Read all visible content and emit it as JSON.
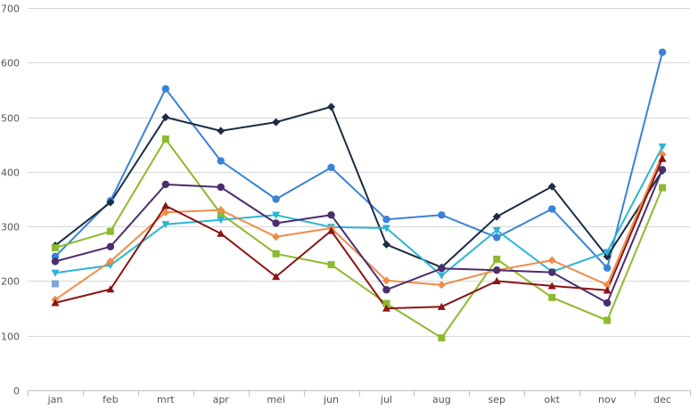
{
  "chart_data": {
    "type": "line",
    "title": "",
    "xlabel": "",
    "ylabel": "",
    "categories": [
      "jan",
      "feb",
      "mrt",
      "apr",
      "mei",
      "jun",
      "jul",
      "aug",
      "sep",
      "okt",
      "nov",
      "dec"
    ],
    "ylim": [
      0,
      700
    ],
    "yticks": [
      0,
      100,
      200,
      300,
      400,
      500,
      600,
      700
    ],
    "grid": true,
    "legend": "none",
    "series": [
      {
        "color": "#3a82d6",
        "marker": "circle",
        "values": [
          245,
          347,
          552,
          420,
          350,
          408,
          313,
          321,
          280,
          332,
          224,
          619
        ]
      },
      {
        "color": "#1b2d42",
        "marker": "diamond",
        "values": [
          265,
          344,
          500,
          475,
          491,
          519,
          267,
          225,
          318,
          373,
          245,
          402
        ]
      },
      {
        "color": "#8dba2e",
        "marker": "square",
        "values": [
          261,
          291,
          460,
          323,
          250,
          230,
          159,
          96,
          240,
          170,
          128,
          371
        ]
      },
      {
        "color": "#2cb4d4",
        "marker": "triangle-down",
        "values": [
          215,
          229,
          304,
          312,
          321,
          299,
          297,
          210,
          293,
          217,
          253,
          446
        ]
      },
      {
        "color": "#ef8c4a",
        "marker": "diamond",
        "values": [
          166,
          236,
          326,
          330,
          281,
          297,
          201,
          193,
          220,
          238,
          193,
          432
        ]
      },
      {
        "color": "#4a2e6e",
        "marker": "circle",
        "values": [
          236,
          263,
          377,
          372,
          306,
          321,
          184,
          223,
          220,
          216,
          160,
          404
        ]
      },
      {
        "color": "#8b1414",
        "marker": "triangle-up",
        "values": [
          160,
          185,
          338,
          287,
          208,
          292,
          150,
          153,
          200,
          191,
          183,
          424
        ]
      }
    ],
    "extra_points": [
      {
        "category": "jan",
        "value": 195,
        "color": "#7fa6dc",
        "marker": "square"
      }
    ]
  }
}
